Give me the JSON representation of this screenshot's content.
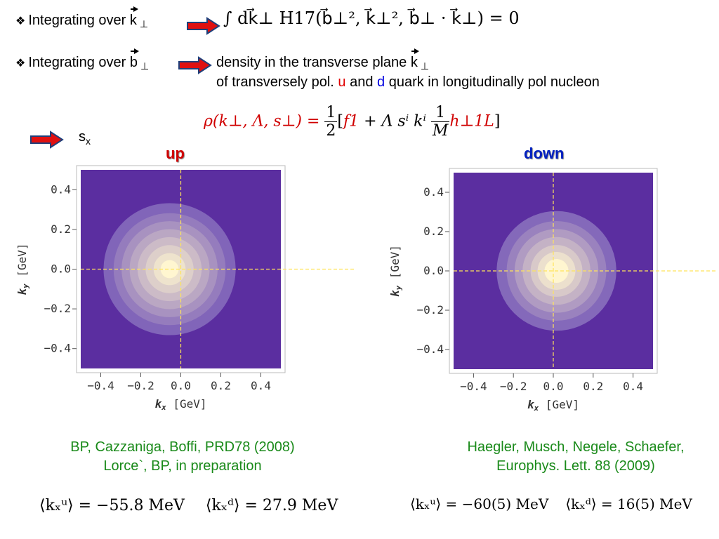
{
  "colors": {
    "arrow_fill": "#e01010",
    "arrow_stroke": "#1f3f7a",
    "plot_background": "#5b2ea0",
    "plot_center": "#fff6d0",
    "crosshair": "#ffe45a",
    "reference_text": "#1a8a1a",
    "up_title": "#d00000",
    "down_title": "#0020c0"
  },
  "bullets": [
    {
      "prefix": "Integrating over ",
      "vector": "k",
      "sub": "⊥"
    },
    {
      "prefix": "Integrating over ",
      "vector": "b",
      "sub": "⊥"
    }
  ],
  "formula1": "∫ dk⃗⊥ H17(b⃗⊥², k⃗⊥², b⃗⊥ · k⃗⊥) = 0",
  "density": {
    "line1_prefix": "density in the transverse plane ",
    "line1_vector": "k",
    "line1_sub": "⊥",
    "line2_prefix": "of transversely pol. ",
    "line2_u": "u",
    "line2_mid": " and ",
    "line2_d": "d",
    "line2_suffix": " quark in longitudinally pol nucleon"
  },
  "formula2": {
    "lhs": "ρ(k⊥, Λ, s⊥) = ",
    "half_num": "1",
    "half_den": "2",
    "bracket_open": "[",
    "f1": "f1",
    "mid": " + Λ sⁱ kⁱ ",
    "m_num": "1",
    "m_den": "M",
    "h": "h⊥1L",
    "bracket_close": "]"
  },
  "spin_label": "s",
  "spin_sub": "x",
  "panels": [
    {
      "title": "up",
      "reference": [
        "BP, Cazzaniga, Boffi, PRD78 (2008)",
        "Lorce`, BP, in preparation"
      ],
      "mean": "⟨kₓᵘ⟩ = −55.8 MeV",
      "mean2": "⟨kₓᵈ⟩ = 27.9 MeV"
    },
    {
      "title": "down",
      "reference": [
        "Haegler, Musch, Negele, Schaefer,",
        "Europhys. Lett. 88 (2009)"
      ],
      "mean": "⟨kₓᵘ⟩ = −60(5) MeV",
      "mean2": "⟨kₓᵈ⟩ = 16(5) MeV"
    }
  ],
  "chart_data": [
    {
      "type": "heatmap",
      "title": "up",
      "xlabel": "kx [GeV]",
      "ylabel": "ky [GeV]",
      "xlim": [
        -0.5,
        0.5
      ],
      "ylim": [
        -0.5,
        0.5
      ],
      "xticks": [
        "-0.4",
        "-0.2",
        "0.0",
        "0.2",
        "0.4"
      ],
      "yticks": [
        "0.4",
        "0.2",
        "0.0",
        "-0.2",
        "-0.4"
      ],
      "center": [
        -0.056,
        0.0
      ],
      "contour_radii": [
        0.33,
        0.28,
        0.24,
        0.2,
        0.16,
        0.12,
        0.08,
        0.045
      ]
    },
    {
      "type": "heatmap",
      "title": "down",
      "xlabel": "kx [GeV]",
      "ylabel": "ky [GeV]",
      "xlim": [
        -0.5,
        0.5
      ],
      "ylim": [
        -0.5,
        0.5
      ],
      "xticks": [
        "-0.4",
        "-0.2",
        "0.0",
        "0.2",
        "0.4"
      ],
      "yticks": [
        "0.4",
        "0.2",
        "0.0",
        "-0.2",
        "-0.4"
      ],
      "center": [
        0.016,
        0.0
      ],
      "contour_radii": [
        0.3,
        0.25,
        0.21,
        0.17,
        0.13,
        0.095,
        0.06
      ]
    }
  ]
}
